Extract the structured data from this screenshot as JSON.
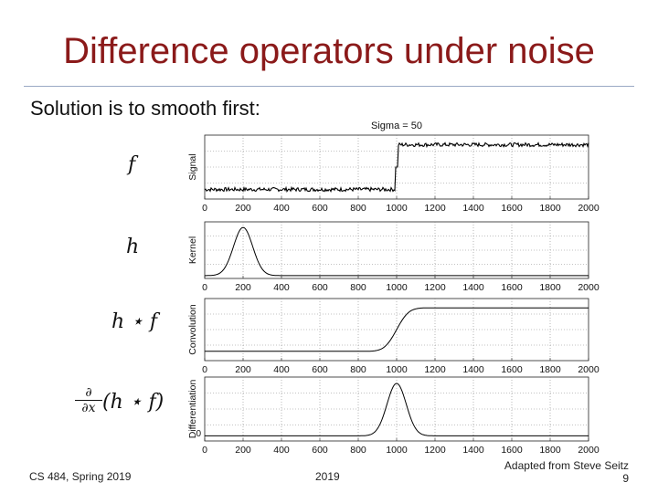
{
  "slide": {
    "title": "Difference operators under noise",
    "subtitle": "Solution is to smooth first:",
    "footer_left": "CS 484, Spring 2019",
    "footer_center": "2019",
    "footer_credit": "Adapted from Steve Seitz",
    "page_number": "9",
    "accent_color": "#8b1a1a"
  },
  "math_labels": {
    "signal": "f",
    "kernel": "h",
    "convolution": "h ⋆ f",
    "derivative_num": "∂",
    "derivative_den": "∂x",
    "derivative_rest": "(h ⋆ f)"
  },
  "chart_data": {
    "type": "line",
    "title": "Sigma = 50",
    "x_ticks": [
      0,
      200,
      400,
      600,
      800,
      1000,
      1200,
      1400,
      1600,
      1800,
      2000
    ],
    "xlim": [
      0,
      2000
    ],
    "grid": true,
    "panels": [
      {
        "ylabel": "Signal",
        "y_ticks": [],
        "description": "noisy step",
        "step_at": 1000,
        "low": 0.15,
        "high": 0.85
      },
      {
        "ylabel": "Kernel",
        "y_ticks": [],
        "description": "gaussian kernel",
        "center": 200,
        "sigma": 50
      },
      {
        "ylabel": "Convolution",
        "y_ticks": [],
        "description": "smoothed step",
        "step_at": 1000,
        "sigma": 50
      },
      {
        "ylabel": "Differentiation",
        "y_ticks": [
          0
        ],
        "description": "gaussian peak at step",
        "center": 1000,
        "sigma": 50
      }
    ]
  }
}
